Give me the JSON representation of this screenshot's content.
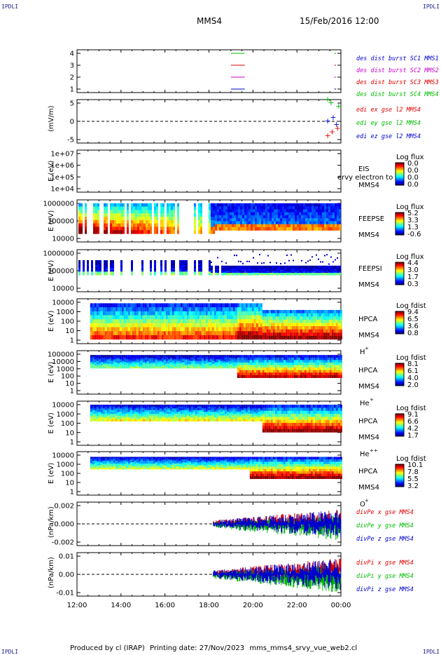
{
  "corners": {
    "top_left": "IPDLI",
    "top_right": "IPDLI",
    "bottom_left": "IPDLI",
    "bottom_right": "IPDLI"
  },
  "header": {
    "spacecraft": "MMS4",
    "datetime": "15/Feb/2016 12:00"
  },
  "footer": {
    "produced": "Produced by cl (IRAP)",
    "printing": "Printing date: 27/Nov/2023",
    "file": "mms_mms4_srvy_vue_web2.cl"
  },
  "x_ticks": [
    "12:00",
    "14:00",
    "16:00",
    "18:00",
    "20:00",
    "22:00",
    "00:00"
  ],
  "chart_data": [
    {
      "type": "line",
      "id": "burst",
      "yticks": [
        "4",
        "3",
        "2",
        "1"
      ],
      "legend": [
        {
          "text": "des dist burst SC1 MMS1",
          "color": "#0000cc"
        },
        {
          "text": "des dist burst SC2 MMS2",
          "color": "#cc00cc"
        },
        {
          "text": "des dist burst SC3 MMS3",
          "color": "#dd0000"
        },
        {
          "text": "des dist burst SC4 MMS4",
          "color": "#00bb00"
        }
      ],
      "series": [
        {
          "y": 4,
          "color": "#00bb00",
          "segments": [
            [
              19.0,
              19.6
            ],
            [
              23.7,
              23.75
            ]
          ]
        },
        {
          "y": 3,
          "color": "#dd0000",
          "segments": [
            [
              19.0,
              19.6
            ],
            [
              23.7,
              23.75
            ]
          ]
        },
        {
          "y": 2,
          "color": "#cc00cc",
          "segments": [
            [
              19.0,
              19.6
            ],
            [
              23.7,
              23.75
            ]
          ]
        },
        {
          "y": 1,
          "color": "#0000cc",
          "segments": [
            [
              19.0,
              19.6
            ],
            [
              23.7,
              23.75
            ]
          ]
        }
      ]
    },
    {
      "type": "scatter",
      "id": "edi",
      "ylabel": "(mV/m)",
      "yticks": [
        "5",
        "0",
        "-5"
      ],
      "legend": [
        {
          "text": "edi ex gse l2 MMS4",
          "color": "#dd0000"
        },
        {
          "text": "edi ey gse l2 MMS4",
          "color": "#00bb00"
        },
        {
          "text": "edi ez gse l2 MMS4",
          "color": "#0000cc"
        }
      ],
      "points": [
        {
          "x": 23.4,
          "y": 6,
          "color": "#00bb00"
        },
        {
          "x": 23.55,
          "y": 5,
          "color": "#00bb00"
        },
        {
          "x": 23.9,
          "y": 4,
          "color": "#00bb00"
        },
        {
          "x": 23.4,
          "y": 0,
          "color": "#0000cc"
        },
        {
          "x": 23.65,
          "y": 1,
          "color": "#0000cc"
        },
        {
          "x": 23.8,
          "y": -1,
          "color": "#0000cc"
        },
        {
          "x": 23.4,
          "y": -4,
          "color": "#dd0000"
        },
        {
          "x": 23.6,
          "y": -3,
          "color": "#dd0000"
        },
        {
          "x": 23.85,
          "y": -2,
          "color": "#dd0000"
        }
      ]
    },
    {
      "type": "heatmap",
      "id": "eis",
      "ylabel": "E (eV)",
      "yticks": [
        "1e+07",
        "1e+06",
        "1e+05",
        "1e+04"
      ],
      "instrument": [
        "EIS",
        "MMS4"
      ],
      "overlay_text": "ervy electron to",
      "colorbar": {
        "title": "Log flux",
        "values": [
          "0.0",
          "0.0",
          "0.0",
          "0.0"
        ]
      }
    },
    {
      "type": "heatmap",
      "id": "feepse",
      "ylabel": "E (eV)",
      "yticks": [
        "1000000",
        "100000",
        "10000"
      ],
      "instrument": [
        "FEEPSE",
        "MMS4"
      ],
      "colorbar": {
        "title": "Log flux",
        "values": [
          "5.2",
          "3.3",
          "1.3",
          "-0.6"
        ]
      }
    },
    {
      "type": "heatmap",
      "id": "feepsi",
      "ylabel": "E (eV)",
      "yticks": [
        "1000000",
        "100000",
        "10000"
      ],
      "instrument": [
        "FEEPSI",
        "MMS4"
      ],
      "colorbar": {
        "title": "Log flux",
        "values": [
          "4.4",
          "3.0",
          "1.7",
          "0.3"
        ]
      }
    },
    {
      "type": "heatmap",
      "id": "hpca_h",
      "ylabel": "E (eV)",
      "yticks": [
        "10000",
        "1000",
        "100",
        "10",
        "1"
      ],
      "instrument": [
        "HPCA",
        "MMS4"
      ],
      "species": "H",
      "charge": "+",
      "colorbar": {
        "title": "Log fdist",
        "values": [
          "9.4",
          "6.5",
          "3.6",
          "0.8"
        ]
      }
    },
    {
      "type": "heatmap",
      "id": "hpca_he",
      "ylabel": "E (eV)",
      "yticks": [
        "100000",
        "10000",
        "1000",
        "100",
        "10",
        "1"
      ],
      "instrument": [
        "HPCA",
        "MMS4"
      ],
      "species": "He",
      "charge": "+",
      "colorbar": {
        "title": "Log fdist",
        "values": [
          "8.1",
          "6.1",
          "4.0",
          "2.0"
        ]
      }
    },
    {
      "type": "heatmap",
      "id": "hpca_he2",
      "ylabel": "E (eV)",
      "yticks": [
        "10000",
        "1000",
        "100",
        "10",
        "1"
      ],
      "instrument": [
        "HPCA",
        "MMS4"
      ],
      "species": "He",
      "charge": "++",
      "colorbar": {
        "title": "Log fdist",
        "values": [
          "9.1",
          "6.6",
          "4.2",
          "1.7"
        ]
      }
    },
    {
      "type": "heatmap",
      "id": "hpca_o",
      "ylabel": "E (eV)",
      "yticks": [
        "10000",
        "1000",
        "100",
        "10",
        "1"
      ],
      "instrument": [
        "HPCA",
        "MMS4"
      ],
      "species": "O",
      "charge": "+",
      "colorbar": {
        "title": "Log fdist",
        "values": [
          "10.1",
          "7.8",
          "5.5",
          "3.2"
        ]
      }
    },
    {
      "type": "line",
      "id": "divpe",
      "ylabel": "(nPa/km)",
      "yticks": [
        "0.002",
        "0.000",
        "-0.002"
      ],
      "ylim": [
        -0.0033,
        0.0033
      ],
      "legend": [
        {
          "text": "divPe x gse MMS4",
          "color": "#dd0000"
        },
        {
          "text": "divPe y gse MMS4",
          "color": "#00bb00"
        },
        {
          "text": "divPe z gse MMS4",
          "color": "#0000cc"
        }
      ],
      "data_start": 18.2,
      "data_end": 24.0,
      "amplitude": 0.0022
    },
    {
      "type": "line",
      "id": "divpi",
      "ylabel": "(nPa/km)",
      "yticks": [
        "0.01",
        "0.00",
        "-0.01"
      ],
      "ylim": [
        -0.015,
        0.015
      ],
      "legend": [
        {
          "text": "divPi x gse MMS4",
          "color": "#dd0000"
        },
        {
          "text": "divPi y gse MMS4",
          "color": "#00bb00"
        },
        {
          "text": "divPi z gse MMS4",
          "color": "#0000cc"
        }
      ],
      "data_start": 18.2,
      "data_end": 24.0,
      "amplitude": 0.011
    }
  ]
}
